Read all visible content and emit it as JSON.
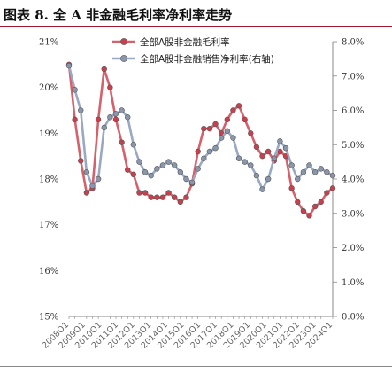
{
  "title": "图表 8. 全 A 非金融毛利率净利率走势",
  "chart_data": {
    "type": "line",
    "y_left": {
      "min": 15,
      "max": 21,
      "step": 1,
      "ticks": [
        "15%",
        "16%",
        "17%",
        "18%",
        "19%",
        "20%",
        "21%"
      ]
    },
    "y_right": {
      "min": 0,
      "max": 8,
      "step": 1,
      "ticks": [
        "0.0%",
        "1.0%",
        "2.0%",
        "3.0%",
        "4.0%",
        "5.0%",
        "6.0%",
        "7.0%",
        "8.0%"
      ]
    },
    "x_labels": [
      "2008Q1",
      "2009Q1",
      "2010Q1",
      "2011Q1",
      "2012Q1",
      "2013Q1",
      "2014Q1",
      "2015Q1",
      "2016Q1",
      "2017Q1",
      "2018Q1",
      "2019Q1",
      "2020Q1",
      "2021Q1",
      "2022Q1",
      "2023Q1",
      "2024Q1"
    ],
    "legend_position": "top-center",
    "series": [
      {
        "name": "全部A股非金融毛利率",
        "axis": "left",
        "color": "#d4616b",
        "marker_fill": "#c8404e",
        "values": [
          20.5,
          19.3,
          18.4,
          17.7,
          17.8,
          19.3,
          20.4,
          20.0,
          19.3,
          18.8,
          18.2,
          18.1,
          17.7,
          17.7,
          17.6,
          17.6,
          17.6,
          17.7,
          17.6,
          17.5,
          17.6,
          17.9,
          18.6,
          19.1,
          19.1,
          19.2,
          19.0,
          19.3,
          19.5,
          19.6,
          19.3,
          19.0,
          18.7,
          18.5,
          18.6,
          18.4,
          18.6,
          18.5,
          17.8,
          17.5,
          17.3,
          17.2,
          17.4,
          17.5,
          17.7,
          17.8
        ]
      },
      {
        "name": "全部A股非金融销售净利率(右轴)",
        "axis": "right",
        "color": "#9aa9c3",
        "marker_fill": "#8a96ab",
        "values": [
          7.3,
          6.6,
          6.0,
          4.2,
          3.8,
          4.0,
          5.5,
          5.8,
          5.9,
          6.0,
          5.8,
          5.0,
          4.5,
          4.2,
          4.1,
          4.3,
          4.4,
          4.5,
          4.4,
          4.2,
          4.0,
          3.9,
          4.3,
          4.6,
          4.8,
          4.9,
          5.2,
          5.4,
          5.2,
          4.6,
          4.5,
          4.4,
          4.1,
          3.7,
          4.0,
          4.6,
          5.1,
          4.9,
          4.4,
          4.0,
          4.2,
          4.4,
          4.2,
          4.3,
          4.2,
          4.1
        ]
      }
    ]
  }
}
